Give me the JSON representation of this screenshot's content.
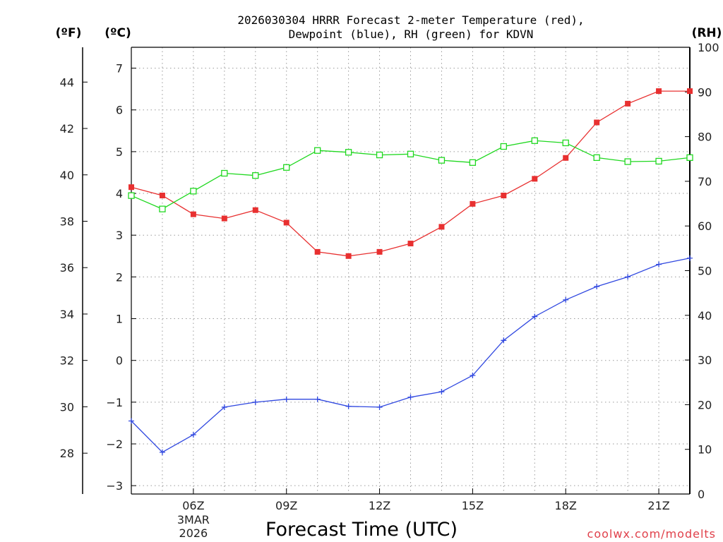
{
  "chart_data": {
    "type": "line",
    "title_lines": [
      "2026030304 HRRR Forecast 2-meter Temperature (red),",
      "Dewpoint (blue), RH (green) for KDVN"
    ],
    "xlabel": "Forecast Time (UTC)",
    "credit": "coolwx.com/modelts",
    "units": {
      "fahrenheit": "(ºF)",
      "celsius": "(ºC)",
      "rh": "(RH)"
    },
    "x_ticks": [
      {
        "hour": 6,
        "label": "06Z",
        "extra": [
          "3MAR",
          "2026"
        ]
      },
      {
        "hour": 9,
        "label": "09Z"
      },
      {
        "hour": 12,
        "label": "12Z"
      },
      {
        "hour": 15,
        "label": "15Z"
      },
      {
        "hour": 18,
        "label": "18Z"
      },
      {
        "hour": 21,
        "label": "21Z"
      }
    ],
    "xlim": [
      4,
      22
    ],
    "celsius_axis": {
      "ylim": [
        -3.2,
        7.5
      ],
      "ticks": [
        "-3",
        "-2",
        "-1",
        "0",
        "1",
        "2",
        "3",
        "4",
        "5",
        "6",
        "7"
      ]
    },
    "fahrenheit_axis": {
      "ticks": [
        "28",
        "30",
        "32",
        "34",
        "36",
        "38",
        "40",
        "42",
        "44"
      ]
    },
    "rh_axis": {
      "ylim": [
        0,
        100
      ],
      "ticks": [
        "0",
        "10",
        "20",
        "30",
        "40",
        "50",
        "60",
        "70",
        "80",
        "90",
        "100"
      ]
    },
    "series": [
      {
        "name": "2-meter Temperature",
        "color": "#e83030",
        "axis": "celsius",
        "marker": "filled-square",
        "x": [
          4,
          5,
          6,
          7,
          8,
          9,
          10,
          11,
          12,
          13,
          14,
          15,
          16,
          17,
          18,
          19,
          20,
          21,
          22
        ],
        "values": [
          4.15,
          3.95,
          3.5,
          3.4,
          3.6,
          3.3,
          2.6,
          2.5,
          2.6,
          2.8,
          3.2,
          3.75,
          3.95,
          4.35,
          4.85,
          5.7,
          6.15,
          6.45,
          6.45
        ]
      },
      {
        "name": "Dewpoint",
        "color": "#3048e0",
        "axis": "celsius",
        "marker": "plus",
        "x": [
          4,
          5,
          6,
          7,
          8,
          9,
          10,
          11,
          12,
          13,
          14,
          15,
          16,
          17,
          18,
          19,
          20,
          21,
          22
        ],
        "values": [
          -1.45,
          -2.2,
          -1.78,
          -1.12,
          -1.0,
          -0.93,
          -0.93,
          -1.1,
          -1.12,
          -0.88,
          -0.75,
          -0.36,
          0.48,
          1.05,
          1.45,
          1.77,
          2.0,
          2.3,
          2.45
        ]
      },
      {
        "name": "RH",
        "color": "#20d820",
        "axis": "rh",
        "marker": "open-square",
        "x": [
          4,
          5,
          6,
          7,
          8,
          9,
          10,
          11,
          12,
          13,
          14,
          15,
          16,
          17,
          18,
          19,
          20,
          21,
          22
        ],
        "values": [
          66.8,
          63.8,
          67.8,
          71.8,
          71.3,
          73.1,
          76.9,
          76.5,
          75.9,
          76.1,
          74.7,
          74.2,
          77.8,
          79.1,
          78.6,
          75.3,
          74.4,
          74.5,
          75.3
        ]
      }
    ]
  }
}
